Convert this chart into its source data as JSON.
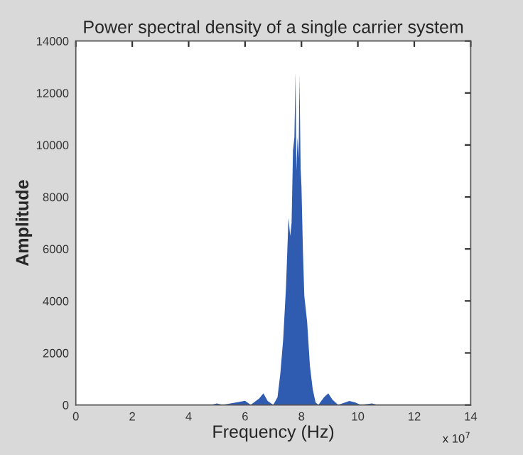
{
  "chart_data": {
    "type": "area",
    "title": "Power spectral density of a single carrier system",
    "xlabel": "Frequency (Hz)",
    "ylabel": "Amplitude",
    "annotations": [
      "x 10$^{7}$"
    ],
    "xlim": [
      0,
      14
    ],
    "xticks": [
      0,
      2,
      4,
      6,
      8,
      10,
      12,
      14
    ],
    "ylim": [
      0,
      14000
    ],
    "yticks": [
      0,
      2000,
      4000,
      6000,
      8000,
      10000,
      12000,
      14000
    ],
    "grid": false,
    "series": [
      {
        "color": "#2f5bb0",
        "x": [
          0,
          4.8,
          5.0,
          5.2,
          5.8,
          6.0,
          6.2,
          6.5,
          6.65,
          6.8,
          7.0,
          7.15,
          7.25,
          7.35,
          7.45,
          7.5,
          7.54,
          7.6,
          7.65,
          7.7,
          7.75,
          7.79,
          7.82,
          7.86,
          7.9,
          7.93,
          7.97,
          8.0,
          8.05,
          8.1,
          8.2,
          8.3,
          8.4,
          8.5,
          8.6,
          8.8,
          8.95,
          9.1,
          9.3,
          9.7,
          9.9,
          10.1,
          10.5,
          10.7,
          14
        ],
        "values": [
          0,
          0,
          60,
          0,
          120,
          160,
          0,
          250,
          450,
          150,
          0,
          300,
          1200,
          2500,
          4500,
          6000,
          7200,
          6500,
          7000,
          9800,
          10300,
          12800,
          9000,
          10300,
          9500,
          12700,
          9100,
          8400,
          6000,
          4200,
          3200,
          1500,
          600,
          100,
          0,
          300,
          450,
          200,
          0,
          150,
          100,
          0,
          60,
          0,
          0
        ]
      }
    ]
  }
}
